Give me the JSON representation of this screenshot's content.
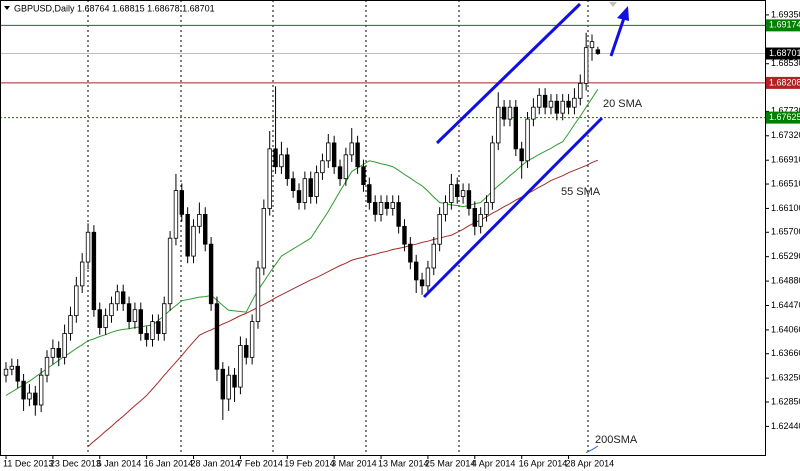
{
  "chart_data": {
    "type": "candlestick",
    "title": "GBPUSD,Daily  1.68764 1.68815 1.68678 1.68701",
    "categories": [
      "11 Dec 2013",
      null,
      null,
      null,
      null,
      null,
      null,
      null,
      "23 Dec 2013",
      null,
      null,
      null,
      null,
      null,
      null,
      null,
      "6 Jan 2014",
      null,
      null,
      null,
      null,
      null,
      null,
      null,
      "16 Jan 2014",
      null,
      null,
      null,
      null,
      null,
      null,
      null,
      "28 Jan 2014",
      null,
      null,
      null,
      null,
      null,
      null,
      null,
      "7 Feb 2014",
      null,
      null,
      null,
      null,
      null,
      null,
      null,
      "19 Feb 2014",
      null,
      null,
      null,
      null,
      null,
      null,
      null,
      "3 Mar 2014",
      null,
      null,
      null,
      null,
      null,
      null,
      null,
      "13 Mar 2014",
      null,
      null,
      null,
      null,
      null,
      null,
      null,
      "25 Mar 2014",
      null,
      null,
      null,
      null,
      null,
      null,
      null,
      "4 Apr 2014",
      null,
      null,
      null,
      null,
      null,
      null,
      null,
      "16 Apr 2014",
      null,
      null,
      null,
      null,
      null,
      null,
      null,
      "28 Apr 2014",
      null,
      null,
      null,
      null,
      null
    ],
    "candles": [
      [
        1.633,
        1.6352,
        1.6318,
        1.634
      ],
      [
        1.634,
        1.6358,
        1.633,
        1.6345
      ],
      [
        1.6345,
        1.6357,
        1.6308,
        1.632
      ],
      [
        1.632,
        1.6332,
        1.627,
        1.629
      ],
      [
        1.629,
        1.6315,
        1.6278,
        1.63
      ],
      [
        1.63,
        1.6312,
        1.6262,
        1.628
      ],
      [
        1.628,
        1.6342,
        1.6268,
        1.633
      ],
      [
        1.633,
        1.6372,
        1.6318,
        1.636
      ],
      [
        1.636,
        1.639,
        1.6348,
        1.6375
      ],
      [
        1.6375,
        1.6387,
        1.6345,
        1.636
      ],
      [
        1.636,
        1.6415,
        1.6348,
        1.64
      ],
      [
        1.64,
        1.6445,
        1.6388,
        1.643
      ],
      [
        1.643,
        1.6495,
        1.6418,
        1.648
      ],
      [
        1.648,
        1.6535,
        1.6468,
        1.652
      ],
      [
        1.652,
        1.6585,
        1.6508,
        1.657
      ],
      [
        1.657,
        1.6582,
        1.6428,
        1.644
      ],
      [
        1.644,
        1.6452,
        1.6398,
        1.641
      ],
      [
        1.641,
        1.6442,
        1.6398,
        1.643
      ],
      [
        1.643,
        1.6462,
        1.6418,
        1.645
      ],
      [
        1.645,
        1.6482,
        1.6438,
        1.647
      ],
      [
        1.647,
        1.6482,
        1.6438,
        1.645
      ],
      [
        1.645,
        1.6462,
        1.6408,
        1.642
      ],
      [
        1.642,
        1.6452,
        1.6408,
        1.644
      ],
      [
        1.644,
        1.6452,
        1.6388,
        1.64
      ],
      [
        1.64,
        1.6412,
        1.6378,
        1.639
      ],
      [
        1.639,
        1.6432,
        1.6378,
        1.642
      ],
      [
        1.642,
        1.6432,
        1.6388,
        1.64
      ],
      [
        1.64,
        1.6462,
        1.6388,
        1.645
      ],
      [
        1.645,
        1.6572,
        1.6438,
        1.656
      ],
      [
        1.656,
        1.6668,
        1.6548,
        1.664
      ],
      [
        1.664,
        1.6652,
        1.6588,
        1.66
      ],
      [
        1.66,
        1.6612,
        1.6518,
        1.653
      ],
      [
        1.653,
        1.6592,
        1.6518,
        1.658
      ],
      [
        1.658,
        1.662,
        1.6568,
        1.66
      ],
      [
        1.66,
        1.6612,
        1.6538,
        1.655
      ],
      [
        1.655,
        1.6562,
        1.6438,
        1.645
      ],
      [
        1.645,
        1.6462,
        1.632,
        1.634
      ],
      [
        1.634,
        1.6352,
        1.6255,
        1.629
      ],
      [
        1.629,
        1.6345,
        1.627,
        1.633
      ],
      [
        1.633,
        1.6342,
        1.6285,
        1.631
      ],
      [
        1.631,
        1.6395,
        1.6298,
        1.638
      ],
      [
        1.638,
        1.6392,
        1.6348,
        1.636
      ],
      [
        1.636,
        1.6432,
        1.6348,
        1.642
      ],
      [
        1.642,
        1.6522,
        1.6408,
        1.651
      ],
      [
        1.651,
        1.6625,
        1.6498,
        1.661
      ],
      [
        1.661,
        1.674,
        1.6598,
        1.671
      ],
      [
        1.671,
        1.6815,
        1.6668,
        1.668
      ],
      [
        1.668,
        1.6722,
        1.6668,
        1.67
      ],
      [
        1.67,
        1.6712,
        1.6648,
        1.666
      ],
      [
        1.666,
        1.6672,
        1.6628,
        1.664
      ],
      [
        1.664,
        1.6652,
        1.6608,
        1.662
      ],
      [
        1.662,
        1.6672,
        1.6608,
        1.666
      ],
      [
        1.666,
        1.6672,
        1.6618,
        1.663
      ],
      [
        1.663,
        1.6682,
        1.6618,
        1.667
      ],
      [
        1.667,
        1.6702,
        1.6658,
        1.669
      ],
      [
        1.669,
        1.6735,
        1.6678,
        1.672
      ],
      [
        1.672,
        1.6732,
        1.6668,
        1.668
      ],
      [
        1.668,
        1.6692,
        1.6648,
        1.666
      ],
      [
        1.666,
        1.6712,
        1.6648,
        1.67
      ],
      [
        1.67,
        1.6745,
        1.6688,
        1.672
      ],
      [
        1.672,
        1.6732,
        1.6668,
        1.668
      ],
      [
        1.668,
        1.6692,
        1.6638,
        1.665
      ],
      [
        1.665,
        1.6662,
        1.6608,
        1.662
      ],
      [
        1.662,
        1.6632,
        1.6588,
        1.66
      ],
      [
        1.66,
        1.6632,
        1.6588,
        1.662
      ],
      [
        1.662,
        1.6632,
        1.6598,
        1.661
      ],
      [
        1.661,
        1.6632,
        1.6598,
        1.662
      ],
      [
        1.662,
        1.6632,
        1.6568,
        1.658
      ],
      [
        1.658,
        1.6592,
        1.6538,
        1.655
      ],
      [
        1.655,
        1.6562,
        1.6508,
        1.652
      ],
      [
        1.652,
        1.6532,
        1.6468,
        1.649
      ],
      [
        1.649,
        1.6502,
        1.6465,
        1.648
      ],
      [
        1.648,
        1.6522,
        1.6468,
        1.651
      ],
      [
        1.651,
        1.6562,
        1.6498,
        1.655
      ],
      [
        1.655,
        1.6612,
        1.6538,
        1.66
      ],
      [
        1.66,
        1.6632,
        1.6588,
        1.662
      ],
      [
        1.662,
        1.6668,
        1.6608,
        1.665
      ],
      [
        1.665,
        1.6662,
        1.6618,
        1.663
      ],
      [
        1.663,
        1.6652,
        1.6618,
        1.664
      ],
      [
        1.664,
        1.6652,
        1.6598,
        1.661
      ],
      [
        1.661,
        1.6622,
        1.6565,
        1.658
      ],
      [
        1.658,
        1.6612,
        1.6568,
        1.66
      ],
      [
        1.66,
        1.6632,
        1.6588,
        1.662
      ],
      [
        1.662,
        1.6732,
        1.6608,
        1.672
      ],
      [
        1.672,
        1.6805,
        1.6708,
        1.678
      ],
      [
        1.678,
        1.6792,
        1.6748,
        1.676
      ],
      [
        1.676,
        1.6792,
        1.6748,
        1.678
      ],
      [
        1.678,
        1.6792,
        1.6698,
        1.671
      ],
      [
        1.671,
        1.6722,
        1.666,
        1.669
      ],
      [
        1.669,
        1.6772,
        1.6678,
        1.676
      ],
      [
        1.676,
        1.6795,
        1.6748,
        1.678
      ],
      [
        1.678,
        1.6812,
        1.6768,
        1.68
      ],
      [
        1.68,
        1.6812,
        1.6768,
        1.678
      ],
      [
        1.678,
        1.6802,
        1.6768,
        1.679
      ],
      [
        1.679,
        1.6802,
        1.6758,
        1.677
      ],
      [
        1.677,
        1.6802,
        1.6758,
        1.679
      ],
      [
        1.679,
        1.6802,
        1.6768,
        1.678
      ],
      [
        1.678,
        1.6812,
        1.6768,
        1.6795
      ],
      [
        1.6795,
        1.6835,
        1.6783,
        1.682
      ],
      [
        1.682,
        1.6905,
        1.6808,
        1.688
      ],
      [
        1.688,
        1.6902,
        1.6858,
        1.689
      ],
      [
        1.68764,
        1.68815,
        1.68678,
        1.68701
      ]
    ],
    "series": [
      {
        "name": "20 SMA",
        "color": "#2e9b2e",
        "values": [
          1.6296,
          1.6302,
          1.6308,
          1.6314,
          1.632,
          1.6327,
          1.6334,
          1.6341,
          1.6348,
          1.6355,
          1.6362,
          1.6368,
          1.6375,
          1.6381,
          1.6388,
          1.6391,
          1.6395,
          1.6398,
          1.6402,
          1.6405,
          1.6407,
          1.6408,
          1.641,
          1.6411,
          1.6413,
          1.6414,
          1.6422,
          1.643,
          1.6439,
          1.6447,
          1.6455,
          1.6457,
          1.6459,
          1.6461,
          1.6462,
          1.6464,
          1.6456,
          1.6447,
          1.6439,
          1.6438,
          1.6437,
          1.6436,
          1.6455,
          1.6473,
          1.6487,
          1.6502,
          1.6516,
          1.653,
          1.6536,
          1.6542,
          1.6548,
          1.6554,
          1.656,
          1.6575,
          1.659,
          1.6605,
          1.6622,
          1.6639,
          1.6655,
          1.6672,
          1.6678,
          1.6684,
          1.669,
          1.6688,
          1.6685,
          1.6683,
          1.668,
          1.6674,
          1.6667,
          1.6661,
          1.6654,
          1.6648,
          1.6639,
          1.6629,
          1.662,
          1.6618,
          1.6616,
          1.6615,
          1.6613,
          1.6615,
          1.6618,
          1.662,
          1.6629,
          1.6639,
          1.6648,
          1.6656,
          1.6665,
          1.6673,
          1.6682,
          1.669,
          1.6695,
          1.6701,
          1.6706,
          1.6711,
          1.6717,
          1.6722,
          1.6736,
          1.6751,
          1.6765,
          1.678,
          1.6795,
          1.681
        ]
      },
      {
        "name": "55 SMA",
        "color": "#a52a2a",
        "values": [
          null,
          null,
          null,
          null,
          null,
          null,
          null,
          null,
          null,
          null,
          null,
          null,
          null,
          null,
          1.621,
          1.6219,
          1.6227,
          1.6236,
          1.6244,
          1.6253,
          1.6261,
          1.627,
          1.6279,
          1.6287,
          1.6296,
          1.6307,
          1.6318,
          1.633,
          1.6341,
          1.6352,
          1.6363,
          1.6375,
          1.6386,
          1.6397,
          1.6402,
          1.6406,
          1.6411,
          1.6416,
          1.642,
          1.6425,
          1.643,
          1.6434,
          1.6439,
          1.6444,
          1.6449,
          1.6454,
          1.646,
          1.6465,
          1.647,
          1.6475,
          1.648,
          1.6485,
          1.649,
          1.6494,
          1.6499,
          1.6504,
          1.6509,
          1.6514,
          1.6518,
          1.6523,
          1.6526,
          1.6528,
          1.6531,
          1.6533,
          1.6536,
          1.6538,
          1.6541,
          1.6543,
          1.6545,
          1.6548,
          1.655,
          1.6553,
          1.6555,
          1.6558,
          1.656,
          1.6563,
          1.6565,
          1.657,
          1.6575,
          1.6581,
          1.6586,
          1.6591,
          1.6596,
          1.6602,
          1.6607,
          1.6613,
          1.6618,
          1.6624,
          1.6629,
          1.6635,
          1.664,
          1.6646,
          1.6651,
          1.6657,
          1.6661,
          1.6665,
          1.667,
          1.6674,
          1.6678,
          1.6682,
          1.6687,
          1.6691
        ]
      },
      {
        "name": "200SMA",
        "color": "#3a5fcd",
        "values": [
          null,
          null,
          null,
          null,
          null,
          null,
          null,
          null,
          null,
          null,
          null,
          null,
          null,
          null,
          null,
          null,
          null,
          null,
          null,
          null,
          null,
          null,
          null,
          null,
          null,
          null,
          null,
          null,
          null,
          null,
          null,
          null,
          null,
          null,
          null,
          null,
          null,
          null,
          null,
          null,
          null,
          null,
          null,
          null,
          null,
          null,
          null,
          null,
          null,
          null,
          null,
          null,
          null,
          null,
          null,
          null,
          null,
          null,
          null,
          null,
          null,
          null,
          null,
          null,
          null,
          null,
          null,
          null,
          null,
          null,
          null,
          null,
          null,
          null,
          null,
          null,
          null,
          null,
          null,
          null,
          null,
          null,
          null,
          null,
          null,
          null,
          null,
          null,
          null,
          null,
          null,
          null,
          null,
          null,
          null,
          null,
          null,
          null,
          null,
          1.62,
          1.6205,
          1.6211
        ]
      }
    ],
    "ylim": [
      1.6196,
      1.696
    ],
    "yticks": [
      {
        "value": 1.6935,
        "label": "1.69350"
      },
      {
        "value": 1.6853,
        "label": "1.68530"
      },
      {
        "value": 1.6773,
        "label": "1.67730"
      },
      {
        "value": 1.6732,
        "label": "1.67320"
      },
      {
        "value": 1.6691,
        "label": "1.66910"
      },
      {
        "value": 1.6651,
        "label": "1.66510"
      },
      {
        "value": 1.661,
        "label": "1.66100"
      },
      {
        "value": 1.657,
        "label": "1.65700"
      },
      {
        "value": 1.6529,
        "label": "1.65290"
      },
      {
        "value": 1.6488,
        "label": "1.64880"
      },
      {
        "value": 1.6447,
        "label": "1.64470"
      },
      {
        "value": 1.6406,
        "label": "1.64060"
      },
      {
        "value": 1.6366,
        "label": "1.63660"
      },
      {
        "value": 1.6325,
        "label": "1.63250"
      },
      {
        "value": 1.6285,
        "label": "1.62850"
      },
      {
        "value": 1.6244,
        "label": "1.62440"
      }
    ],
    "levels": [
      {
        "value": 1.69174,
        "color": "#008000",
        "style": "solid"
      },
      {
        "value": 1.68701,
        "color": "#000000",
        "style": "thin"
      },
      {
        "value": 1.68208,
        "color": "#b22222",
        "style": "solid"
      },
      {
        "value": 1.67625,
        "color": "#008000",
        "style": "dotted"
      }
    ],
    "annotations": [
      "20 SMA",
      "55 SMA",
      "200SMA"
    ],
    "bull_color": "#ffffff",
    "bear_color": "#000000"
  }
}
